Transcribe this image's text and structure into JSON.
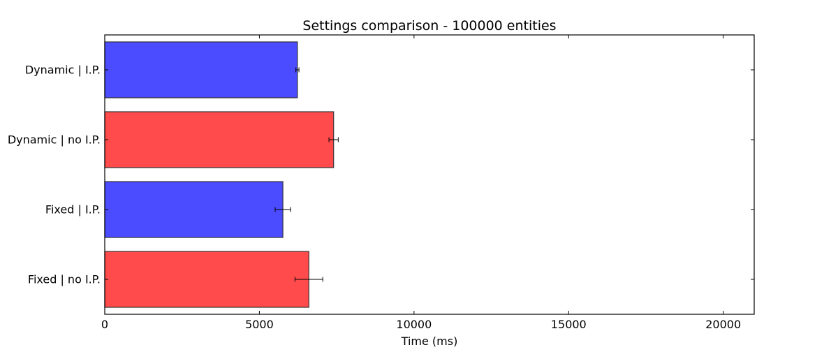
{
  "chart_data": {
    "type": "bar",
    "orientation": "horizontal",
    "title": "Settings comparison - 100000 entities",
    "xlabel": "Time (ms)",
    "ylabel": "",
    "xlim": [
      0,
      21000
    ],
    "xticks": [
      0,
      5000,
      10000,
      15000,
      20000
    ],
    "grid": false,
    "legend": "none",
    "categories": [
      "Dynamic | I.P.",
      "Dynamic | no I.P.",
      "Fixed | I.P.",
      "Fixed | no I.P."
    ],
    "values": [
      6230,
      7400,
      5760,
      6600
    ],
    "errors": [
      50,
      150,
      250,
      450
    ],
    "colors": [
      "#4b4bff",
      "#ff4b4b",
      "#4b4bff",
      "#ff4b4b"
    ],
    "edge_color": "#333333"
  }
}
